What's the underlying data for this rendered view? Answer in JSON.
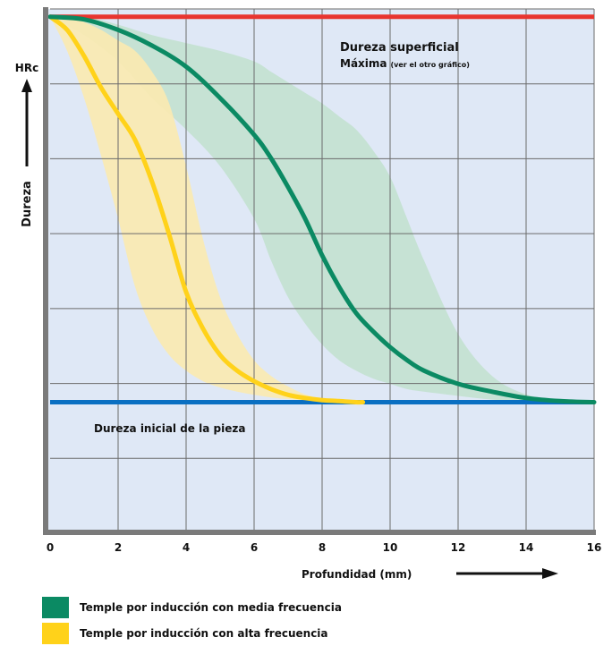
{
  "chart_data": {
    "type": "line",
    "title": "",
    "xlabel": "Profundidad (mm)",
    "ylabel": "Dureza",
    "y_unit": "HRc",
    "x_ticks": [
      "0",
      "2",
      "4",
      "6",
      "8",
      "10",
      "12",
      "14",
      "16"
    ],
    "xlim": [
      0,
      16
    ],
    "ylim": [
      0,
      1
    ],
    "grid": true,
    "legend_position": "bottom-left",
    "colors": {
      "max_line": "#e8352f",
      "base_line": "#0a6fc2",
      "medium": "#0b8a63",
      "high": "#ffd21a",
      "medium_band": "#bfe0cc",
      "high_band": "#fbeab0",
      "plot_bg": "#dfe8f6",
      "grid": "#6b6b6b"
    },
    "annotations": {
      "max_hardness_line1": "Dureza superficial",
      "max_hardness_line2": "Máxima",
      "max_hardness_note": "(ver el otro gráfico)",
      "initial_hardness": "Dureza inicial de la pieza"
    },
    "reference_lines": {
      "max_hardness": 0.985,
      "initial_hardness": 0.25
    },
    "series": [
      {
        "name": "Temple por inducción con media frecuencia",
        "color": "#0b8a63",
        "x": [
          0,
          1,
          2,
          3,
          4,
          5,
          6,
          6.5,
          7,
          7.5,
          8,
          8.5,
          9,
          9.5,
          10,
          10.5,
          11,
          12,
          13,
          14,
          15,
          16
        ],
        "y": [
          0.985,
          0.98,
          0.96,
          0.93,
          0.89,
          0.83,
          0.76,
          0.715,
          0.66,
          0.6,
          0.53,
          0.47,
          0.42,
          0.385,
          0.355,
          0.33,
          0.31,
          0.285,
          0.27,
          0.258,
          0.252,
          0.25
        ],
        "band_upper": [
          0.985,
          0.985,
          0.97,
          0.95,
          0.935,
          0.92,
          0.9,
          0.88,
          0.86,
          0.84,
          0.82,
          0.795,
          0.77,
          0.73,
          0.68,
          0.6,
          0.52,
          0.38,
          0.3,
          0.265,
          0.255,
          0.25
        ],
        "band_lower": [
          0.985,
          0.95,
          0.9,
          0.83,
          0.77,
          0.7,
          0.6,
          0.52,
          0.45,
          0.4,
          0.36,
          0.33,
          0.31,
          0.295,
          0.285,
          0.275,
          0.27,
          0.262,
          0.255,
          0.252,
          0.25,
          0.25
        ]
      },
      {
        "name": "Temple por inducción con alta frecuencia",
        "color": "#ffd21a",
        "x": [
          0,
          0.5,
          1,
          1.5,
          2,
          2.5,
          3,
          3.5,
          4,
          4.5,
          5,
          5.5,
          6,
          6.5,
          7,
          7.5,
          8,
          8.5,
          9,
          9.2
        ],
        "y": [
          0.985,
          0.96,
          0.91,
          0.85,
          0.8,
          0.75,
          0.67,
          0.57,
          0.46,
          0.39,
          0.34,
          0.31,
          0.29,
          0.275,
          0.264,
          0.258,
          0.254,
          0.252,
          0.25,
          0.25
        ],
        "band_upper": [
          0.985,
          0.985,
          0.975,
          0.96,
          0.94,
          0.92,
          0.88,
          0.82,
          0.7,
          0.56,
          0.45,
          0.38,
          0.33,
          0.3,
          0.28,
          0.265,
          0.257,
          0.253,
          0.25,
          0.25
        ],
        "band_lower": [
          0.985,
          0.92,
          0.83,
          0.72,
          0.6,
          0.47,
          0.39,
          0.34,
          0.31,
          0.29,
          0.278,
          0.27,
          0.264,
          0.259,
          0.256,
          0.253,
          0.252,
          0.251,
          0.25,
          0.25
        ]
      }
    ]
  },
  "legend": [
    {
      "label": "Temple por inducción con media frecuencia",
      "color": "#0b8a63"
    },
    {
      "label": "Temple por inducción con alta frecuencia",
      "color": "#ffd21a"
    }
  ]
}
